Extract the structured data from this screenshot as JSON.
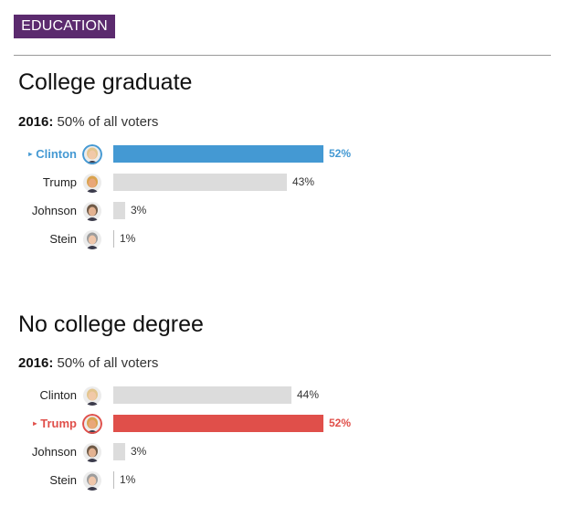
{
  "badge": "EDUCATION",
  "colors": {
    "badge_bg": "#5b2a6e",
    "clinton": "#4499d3",
    "trump": "#e04f4a",
    "loser_bar": "#dcdcdc",
    "minor_bar": "#dcdcdc"
  },
  "chart_data": [
    {
      "type": "bar",
      "title": "College graduate",
      "subtitle_year": "2016:",
      "subtitle_text": " 50% of all voters",
      "categories": [
        "Clinton",
        "Trump",
        "Johnson",
        "Stein"
      ],
      "values": [
        52,
        43,
        3,
        1
      ],
      "labels": [
        "52%",
        "43%",
        "3%",
        "1%"
      ],
      "winner": "Clinton",
      "winner_color": "#4499d3",
      "xlim": [
        0,
        52
      ]
    },
    {
      "type": "bar",
      "title": "No college degree",
      "subtitle_year": "2016:",
      "subtitle_text": " 50% of all voters",
      "categories": [
        "Clinton",
        "Trump",
        "Johnson",
        "Stein"
      ],
      "values": [
        44,
        52,
        3,
        1
      ],
      "labels": [
        "44%",
        "52%",
        "3%",
        "1%"
      ],
      "winner": "Trump",
      "winner_color": "#e04f4a",
      "xlim": [
        0,
        52
      ]
    }
  ],
  "avatars": {
    "Clinton": "clinton-avatar-icon",
    "Trump": "trump-avatar-icon",
    "Johnson": "johnson-avatar-icon",
    "Stein": "stein-avatar-icon"
  }
}
